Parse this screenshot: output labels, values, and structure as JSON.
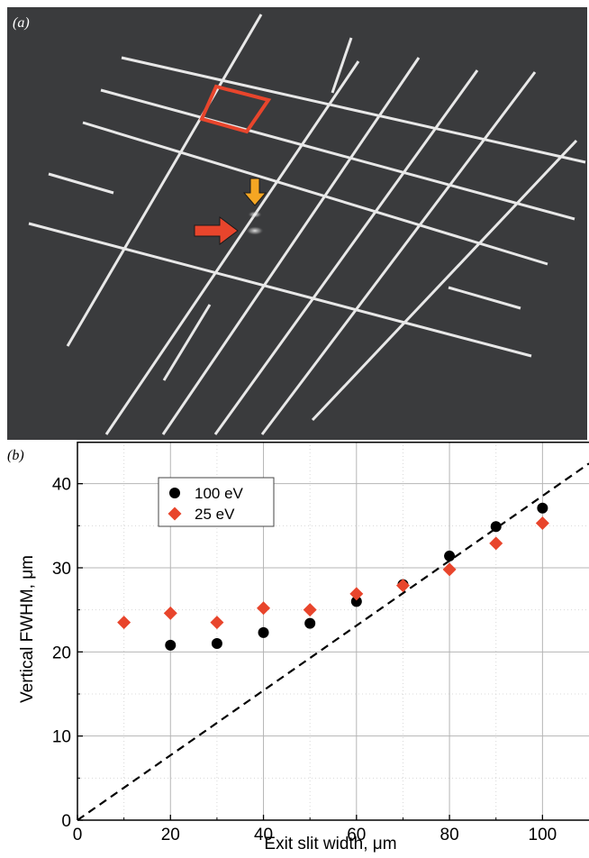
{
  "panel_a": {
    "label": "(a)",
    "colors": {
      "background": "#3a3b3d",
      "grid": "#e8e8e8",
      "highlight_box": "#e8452c",
      "arrow_main": "#e8452c",
      "arrow_small": "#f5a623"
    },
    "icons": [
      "red-arrow-icon",
      "orange-arrow-icon"
    ]
  },
  "chart_data": {
    "type": "scatter",
    "panel_label": "(b)",
    "xlabel": "Exit slit width, μm",
    "ylabel": "Vertical FWHM, μm",
    "xlim": [
      0,
      110
    ],
    "ylim": [
      0,
      45
    ],
    "x_ticks": [
      0,
      20,
      40,
      60,
      80,
      100
    ],
    "y_ticks": [
      0,
      10,
      20,
      30,
      40
    ],
    "grid": true,
    "legend_position": "top-left",
    "series": [
      {
        "name": "100 eV",
        "marker": "circle",
        "color": "#000000",
        "x": [
          20,
          30,
          40,
          50,
          60,
          70,
          80,
          90,
          100
        ],
        "y": [
          20.8,
          21.0,
          22.3,
          23.4,
          26.0,
          28.0,
          31.4,
          34.9,
          37.1
        ]
      },
      {
        "name": "25 eV",
        "marker": "diamond",
        "color": "#e8452c",
        "x": [
          10,
          20,
          30,
          40,
          50,
          60,
          70,
          80,
          90,
          100
        ],
        "y": [
          23.5,
          24.6,
          23.5,
          25.2,
          25.0,
          26.9,
          27.9,
          29.8,
          32.9,
          35.3
        ]
      }
    ],
    "reference_line": {
      "style": "dashed",
      "color": "#000000",
      "x": [
        0,
        110
      ],
      "y": [
        0,
        42.4
      ]
    }
  }
}
